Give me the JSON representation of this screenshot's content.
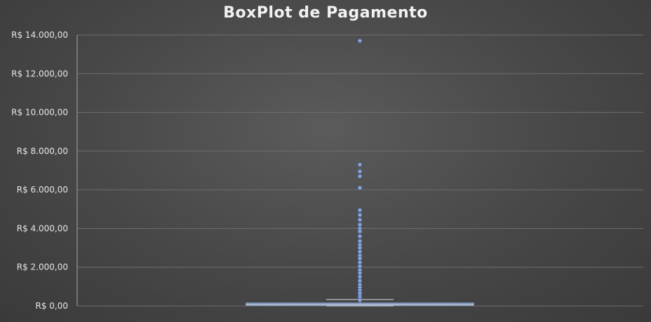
{
  "chart_data": {
    "type": "boxplot",
    "title": "BoxPlot de Pagamento",
    "xlabel": "",
    "ylabel": "",
    "ylim": [
      0,
      14000
    ],
    "yticks": [
      0,
      2000,
      4000,
      6000,
      8000,
      10000,
      12000,
      14000
    ],
    "ytick_labels": [
      "R$ 0,00",
      "R$ 2.000,00",
      "R$ 4.000,00",
      "R$ 6.000,00",
      "R$ 8.000,00",
      "R$ 10.000,00",
      "R$ 12.000,00",
      "R$ 14.000,00"
    ],
    "grid": true,
    "legend": "none",
    "series": [
      {
        "box": {
          "whisker_low": 0,
          "q1": 40,
          "median": 70,
          "q3": 140,
          "whisker_high": 330
        },
        "outliers": [
          13700,
          7300,
          6950,
          6700,
          6100,
          4950,
          4700,
          4450,
          4200,
          4000,
          3850,
          3600,
          3350,
          3150,
          3000,
          2800,
          2600,
          2450,
          2250,
          2050,
          1850,
          1700,
          1500,
          1300,
          1100,
          950,
          800,
          650,
          500,
          380,
          300
        ]
      }
    ],
    "colors": {
      "box": "#8eaadb",
      "whisker": "#bfbfbf",
      "grid": "#6e6e6e",
      "axis": "#a6a6a6"
    }
  }
}
